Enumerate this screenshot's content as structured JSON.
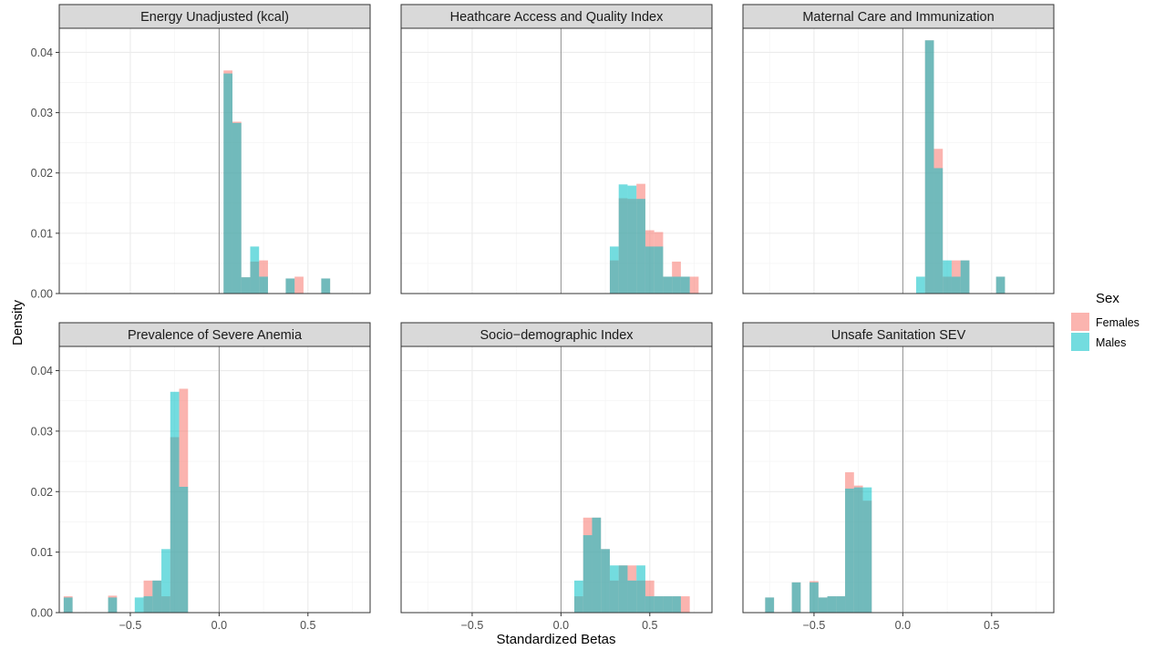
{
  "chart_data": {
    "type": "bar",
    "subtype": "faceted-histogram",
    "xlabel": "Standardized Betas",
    "ylabel": "Density",
    "xlim": [
      -0.9,
      0.85
    ],
    "ylim": [
      0,
      0.044
    ],
    "x_ticks": [
      -0.5,
      0.0,
      0.5
    ],
    "x_tick_labels": [
      "−0.5",
      "0.0",
      "0.5"
    ],
    "y_ticks": [
      0.0,
      0.01,
      0.02,
      0.03,
      0.04
    ],
    "y_tick_labels": [
      "0.00",
      "0.01",
      "0.02",
      "0.03",
      "0.04"
    ],
    "bin_width": 0.05,
    "reference_line_x": 0,
    "grid": true,
    "legend": {
      "title": "Sex",
      "position": "right",
      "entries": [
        {
          "name": "Females",
          "color": "#F8766D"
        },
        {
          "name": "Males",
          "color": "#00BFC4"
        }
      ]
    },
    "panels": [
      {
        "title": "Energy Unadjusted (kcal)",
        "bins": [
          {
            "x0": 0.025,
            "x1": 0.075,
            "females": 0.037,
            "males": 0.0365
          },
          {
            "x0": 0.075,
            "x1": 0.125,
            "females": 0.0285,
            "males": 0.0283
          },
          {
            "x0": 0.125,
            "x1": 0.175,
            "females": 0.0027,
            "males": 0.0027
          },
          {
            "x0": 0.175,
            "x1": 0.225,
            "females": 0.0053,
            "males": 0.0078
          },
          {
            "x0": 0.225,
            "x1": 0.275,
            "females": 0.0055,
            "males": 0.0028
          },
          {
            "x0": 0.375,
            "x1": 0.425,
            "females": 0.0025,
            "males": 0.0025
          },
          {
            "x0": 0.425,
            "x1": 0.475,
            "females": 0.0028,
            "males": 0.0
          },
          {
            "x0": 0.575,
            "x1": 0.625,
            "females": 0.0025,
            "males": 0.0025
          }
        ]
      },
      {
        "title": "Heathcare Access and Quality Index",
        "bins": [
          {
            "x0": 0.275,
            "x1": 0.325,
            "females": 0.0055,
            "males": 0.0078
          },
          {
            "x0": 0.325,
            "x1": 0.375,
            "females": 0.0158,
            "males": 0.0181
          },
          {
            "x0": 0.375,
            "x1": 0.425,
            "females": 0.0157,
            "males": 0.0179
          },
          {
            "x0": 0.425,
            "x1": 0.475,
            "females": 0.0182,
            "males": 0.0157
          },
          {
            "x0": 0.475,
            "x1": 0.525,
            "females": 0.0105,
            "males": 0.0078
          },
          {
            "x0": 0.525,
            "x1": 0.575,
            "females": 0.0102,
            "males": 0.0078
          },
          {
            "x0": 0.575,
            "x1": 0.625,
            "females": 0.0028,
            "males": 0.0028
          },
          {
            "x0": 0.625,
            "x1": 0.675,
            "females": 0.0053,
            "males": 0.0028
          },
          {
            "x0": 0.675,
            "x1": 0.725,
            "females": 0.0028,
            "males": 0.0028
          },
          {
            "x0": 0.725,
            "x1": 0.775,
            "females": 0.0028,
            "males": 0.0
          }
        ]
      },
      {
        "title": "Maternal Care and Immunization",
        "bins": [
          {
            "x0": 0.075,
            "x1": 0.125,
            "females": 0.0,
            "males": 0.0028
          },
          {
            "x0": 0.125,
            "x1": 0.175,
            "females": 0.042,
            "males": 0.042
          },
          {
            "x0": 0.175,
            "x1": 0.225,
            "females": 0.024,
            "males": 0.0208
          },
          {
            "x0": 0.225,
            "x1": 0.275,
            "females": 0.0028,
            "males": 0.0055
          },
          {
            "x0": 0.275,
            "x1": 0.325,
            "females": 0.0055,
            "males": 0.0028
          },
          {
            "x0": 0.325,
            "x1": 0.375,
            "females": 0.0055,
            "males": 0.0055
          },
          {
            "x0": 0.525,
            "x1": 0.575,
            "females": 0.0028,
            "males": 0.0028
          }
        ]
      },
      {
        "title": "Prevalence of Severe Anemia",
        "bins": [
          {
            "x0": -0.875,
            "x1": -0.825,
            "females": 0.0027,
            "males": 0.0025
          },
          {
            "x0": -0.625,
            "x1": -0.575,
            "females": 0.0028,
            "males": 0.0025
          },
          {
            "x0": -0.475,
            "x1": -0.425,
            "females": 0.0,
            "males": 0.0025
          },
          {
            "x0": -0.425,
            "x1": -0.375,
            "females": 0.0053,
            "males": 0.0027
          },
          {
            "x0": -0.375,
            "x1": -0.325,
            "females": 0.0053,
            "males": 0.0053
          },
          {
            "x0": -0.325,
            "x1": -0.275,
            "females": 0.0027,
            "males": 0.0105
          },
          {
            "x0": -0.275,
            "x1": -0.225,
            "females": 0.029,
            "males": 0.0365
          },
          {
            "x0": -0.225,
            "x1": -0.175,
            "females": 0.037,
            "males": 0.0208
          }
        ]
      },
      {
        "title": "Socio−demographic Index",
        "bins": [
          {
            "x0": 0.075,
            "x1": 0.125,
            "females": 0.0027,
            "males": 0.0053
          },
          {
            "x0": 0.125,
            "x1": 0.175,
            "females": 0.0157,
            "males": 0.0128
          },
          {
            "x0": 0.175,
            "x1": 0.225,
            "females": 0.0157,
            "males": 0.0157
          },
          {
            "x0": 0.225,
            "x1": 0.275,
            "females": 0.0105,
            "males": 0.0105
          },
          {
            "x0": 0.275,
            "x1": 0.325,
            "females": 0.0053,
            "males": 0.0078
          },
          {
            "x0": 0.325,
            "x1": 0.375,
            "females": 0.0078,
            "males": 0.0078
          },
          {
            "x0": 0.375,
            "x1": 0.425,
            "females": 0.0078,
            "males": 0.0053
          },
          {
            "x0": 0.425,
            "x1": 0.475,
            "females": 0.0053,
            "males": 0.0078
          },
          {
            "x0": 0.475,
            "x1": 0.525,
            "females": 0.0053,
            "males": 0.0027
          },
          {
            "x0": 0.525,
            "x1": 0.575,
            "females": 0.0027,
            "males": 0.0027
          },
          {
            "x0": 0.575,
            "x1": 0.625,
            "females": 0.0027,
            "males": 0.0027
          },
          {
            "x0": 0.625,
            "x1": 0.675,
            "females": 0.0027,
            "males": 0.0027
          },
          {
            "x0": 0.675,
            "x1": 0.725,
            "females": 0.0027,
            "males": 0.0
          }
        ]
      },
      {
        "title": "Unsafe Sanitation SEV",
        "bins": [
          {
            "x0": -0.775,
            "x1": -0.725,
            "females": 0.0025,
            "males": 0.0025
          },
          {
            "x0": -0.625,
            "x1": -0.575,
            "females": 0.005,
            "males": 0.005
          },
          {
            "x0": -0.525,
            "x1": -0.475,
            "females": 0.0052,
            "males": 0.005
          },
          {
            "x0": -0.475,
            "x1": -0.425,
            "females": 0.0025,
            "males": 0.0025
          },
          {
            "x0": -0.425,
            "x1": -0.375,
            "females": 0.0027,
            "males": 0.0027
          },
          {
            "x0": -0.375,
            "x1": -0.325,
            "females": 0.0027,
            "males": 0.0027
          },
          {
            "x0": -0.325,
            "x1": -0.275,
            "females": 0.0232,
            "males": 0.0205
          },
          {
            "x0": -0.275,
            "x1": -0.225,
            "females": 0.021,
            "males": 0.0207
          },
          {
            "x0": -0.225,
            "x1": -0.175,
            "females": 0.0185,
            "males": 0.0207
          }
        ]
      }
    ]
  }
}
